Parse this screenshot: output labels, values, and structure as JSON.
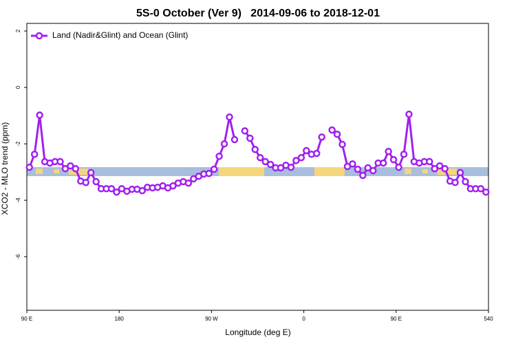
{
  "chart_data": {
    "type": "line",
    "title": "5S-0 October (Ver 9)   2014-09-06 to 2018-12-01",
    "x_label": "Longitude (deg E)",
    "y_label": "XCO2 - MLO trend (ppm)",
    "x": [
      92.5,
      97.5,
      102.5,
      107.5,
      112.5,
      117.5,
      122.5,
      127.5,
      132.5,
      137.5,
      142.5,
      147.5,
      152.5,
      157.5,
      162.5,
      167.5,
      172.5,
      177.5,
      182.5,
      187.5,
      192.5,
      197.5,
      202.5,
      207.5,
      212.5,
      217.5,
      222.5,
      227.5,
      232.5,
      237.5,
      242.5,
      247.5,
      252.5,
      257.5,
      262.5,
      267.5,
      272.5,
      277.5,
      282.5,
      287.5,
      292.5,
      297.5,
      302.5,
      307.5,
      312.5,
      317.5,
      322.5,
      327.5,
      332.5,
      337.5,
      342.5,
      347.5,
      352.5,
      357.5,
      362.5,
      367.5,
      372.5,
      377.5,
      382.5,
      387.5,
      392.5,
      397.5,
      402.5,
      407.5,
      412.5,
      417.5,
      422.5,
      427.5,
      432.5,
      437.5,
      442.5,
      447.5,
      452.5,
      457.5,
      462.5,
      467.5,
      472.5,
      477.5,
      482.5,
      487.5,
      492.5,
      497.5,
      502.5,
      507.5,
      512.5,
      517.5,
      522.5,
      527.5,
      532.5,
      537.5
    ],
    "series": [
      {
        "name": "Land (Nadir&Glint) and Ocean (Glint)",
        "color": "#a020f0",
        "values": [
          -2.83,
          -2.37,
          -0.98,
          -2.63,
          -2.68,
          -2.63,
          -2.63,
          -2.88,
          -2.78,
          -2.88,
          -3.32,
          -3.37,
          -3.02,
          -3.34,
          -3.59,
          -3.59,
          -3.59,
          -3.71,
          -3.59,
          -3.68,
          -3.61,
          -3.61,
          -3.66,
          -3.54,
          -3.56,
          -3.54,
          -3.49,
          -3.56,
          -3.49,
          -3.39,
          -3.34,
          -3.39,
          -3.24,
          -3.15,
          -3.07,
          -3.05,
          -2.9,
          -2.44,
          -2.0,
          -1.05,
          -1.85,
          null,
          -1.54,
          -1.8,
          -2.2,
          -2.49,
          -2.63,
          -2.73,
          -2.85,
          -2.85,
          -2.76,
          -2.83,
          -2.59,
          -2.49,
          -2.24,
          -2.37,
          -2.34,
          -1.76,
          null,
          -1.51,
          -1.66,
          -2.02,
          -2.8,
          -2.71,
          -2.9,
          -3.12,
          -2.85,
          -2.95,
          -2.68,
          -2.68,
          -2.27,
          -2.56,
          -2.83,
          -2.37,
          -0.95,
          -2.63,
          -2.68,
          -2.63,
          -2.63,
          -2.88,
          -2.78,
          -2.88,
          -3.32,
          -3.37,
          -3.02,
          -3.34,
          -3.59,
          -3.59,
          -3.59,
          -3.71
        ]
      }
    ],
    "xlim": [
      90,
      540
    ],
    "xticks": [
      {
        "value": 90,
        "label": "90 E"
      },
      180,
      {
        "value": 270,
        "label": "90 W"
      },
      {
        "value": 360,
        "label": "0"
      },
      {
        "value": 450,
        "label": "90 E"
      },
      540
    ],
    "ylim": [
      -7.9,
      2.27
    ],
    "yticks": [
      -6,
      -4,
      -2,
      0,
      2
    ],
    "legend": "top-left"
  }
}
